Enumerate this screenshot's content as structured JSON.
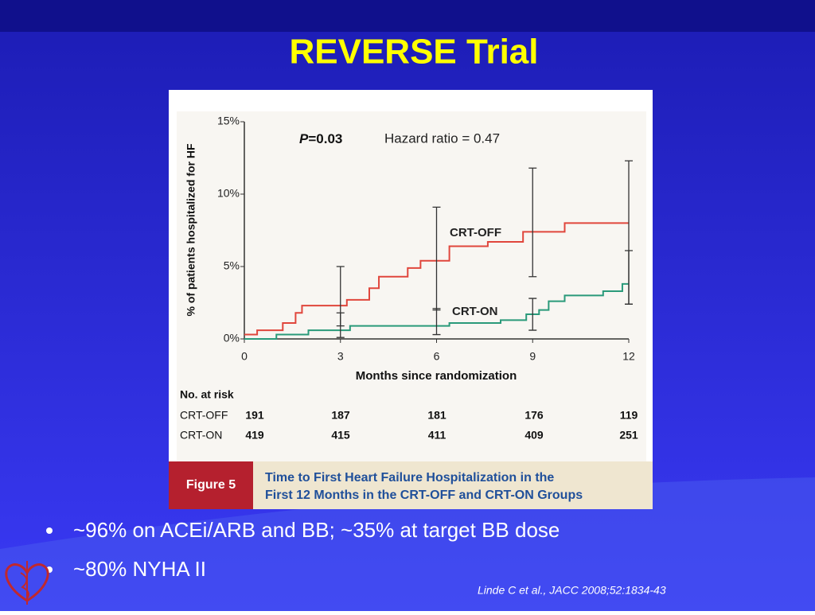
{
  "title": "REVERSE Trial",
  "chart_data": {
    "type": "step-line",
    "y_label": "% of patients hospitalized for HF",
    "x_label": "Months since randomization",
    "annotation_p_label": "P",
    "annotation_p_value": "=0.03",
    "annotation_hazard": "Hazard ratio = 0.47",
    "xlim": [
      0,
      12
    ],
    "ylim": [
      0,
      15
    ],
    "xticks": [
      0,
      3,
      6,
      9,
      12
    ],
    "yticks": [
      {
        "value": 0,
        "label": "0%"
      },
      {
        "value": 5,
        "label": "5%"
      },
      {
        "value": 10,
        "label": "10%"
      },
      {
        "value": 15,
        "label": "15%"
      }
    ],
    "error_x": [
      3,
      6,
      9,
      12
    ],
    "series": [
      {
        "name": "CRT-OFF",
        "color": "#e0463c",
        "x": [
          0,
          0.4,
          1.2,
          1.6,
          1.8,
          3.2,
          3.9,
          4.2,
          5.1,
          5.5,
          6.4,
          7.6,
          8.7,
          10,
          12
        ],
        "values": [
          0.3,
          0.6,
          1.1,
          1.8,
          2.3,
          2.7,
          3.5,
          4.3,
          4.9,
          5.4,
          6.4,
          6.7,
          7.4,
          8.0,
          8.0
        ],
        "error_low": [
          0.9,
          2.0,
          4.3,
          2.4
        ],
        "error_high": [
          5.0,
          9.1,
          11.8,
          12.3
        ]
      },
      {
        "name": "CRT-ON",
        "color": "#2a9a7a",
        "x": [
          0,
          1,
          2,
          3.3,
          6.4,
          8,
          8.8,
          9.2,
          9.5,
          10,
          11.2,
          11.8,
          12
        ],
        "values": [
          0,
          0.3,
          0.6,
          0.9,
          1.1,
          1.3,
          1.7,
          2.0,
          2.6,
          3.0,
          3.3,
          3.8,
          3.8
        ],
        "error_low": [
          0.1,
          0.3,
          0.6,
          2.4
        ],
        "error_high": [
          1.8,
          2.1,
          2.8,
          6.1
        ]
      }
    ]
  },
  "risk_table": {
    "header": "No. at risk",
    "rows": [
      [
        "CRT-OFF",
        "191",
        "187",
        "181",
        "176",
        "119"
      ],
      [
        "CRT-ON",
        "419",
        "415",
        "411",
        "409",
        "251"
      ]
    ]
  },
  "figure": {
    "label": "Figure 5",
    "caption_line1": "Time to First Heart Failure Hospitalization in the",
    "caption_line2": "First 12 Months in the CRT-OFF and CRT-ON Groups"
  },
  "bullets": [
    "~96% on ACEi/ARB and BB; ~35% at target BB dose",
    "~80% NYHA II"
  ],
  "citation": "Linde C et al., JACC 2008;52:1834-43"
}
